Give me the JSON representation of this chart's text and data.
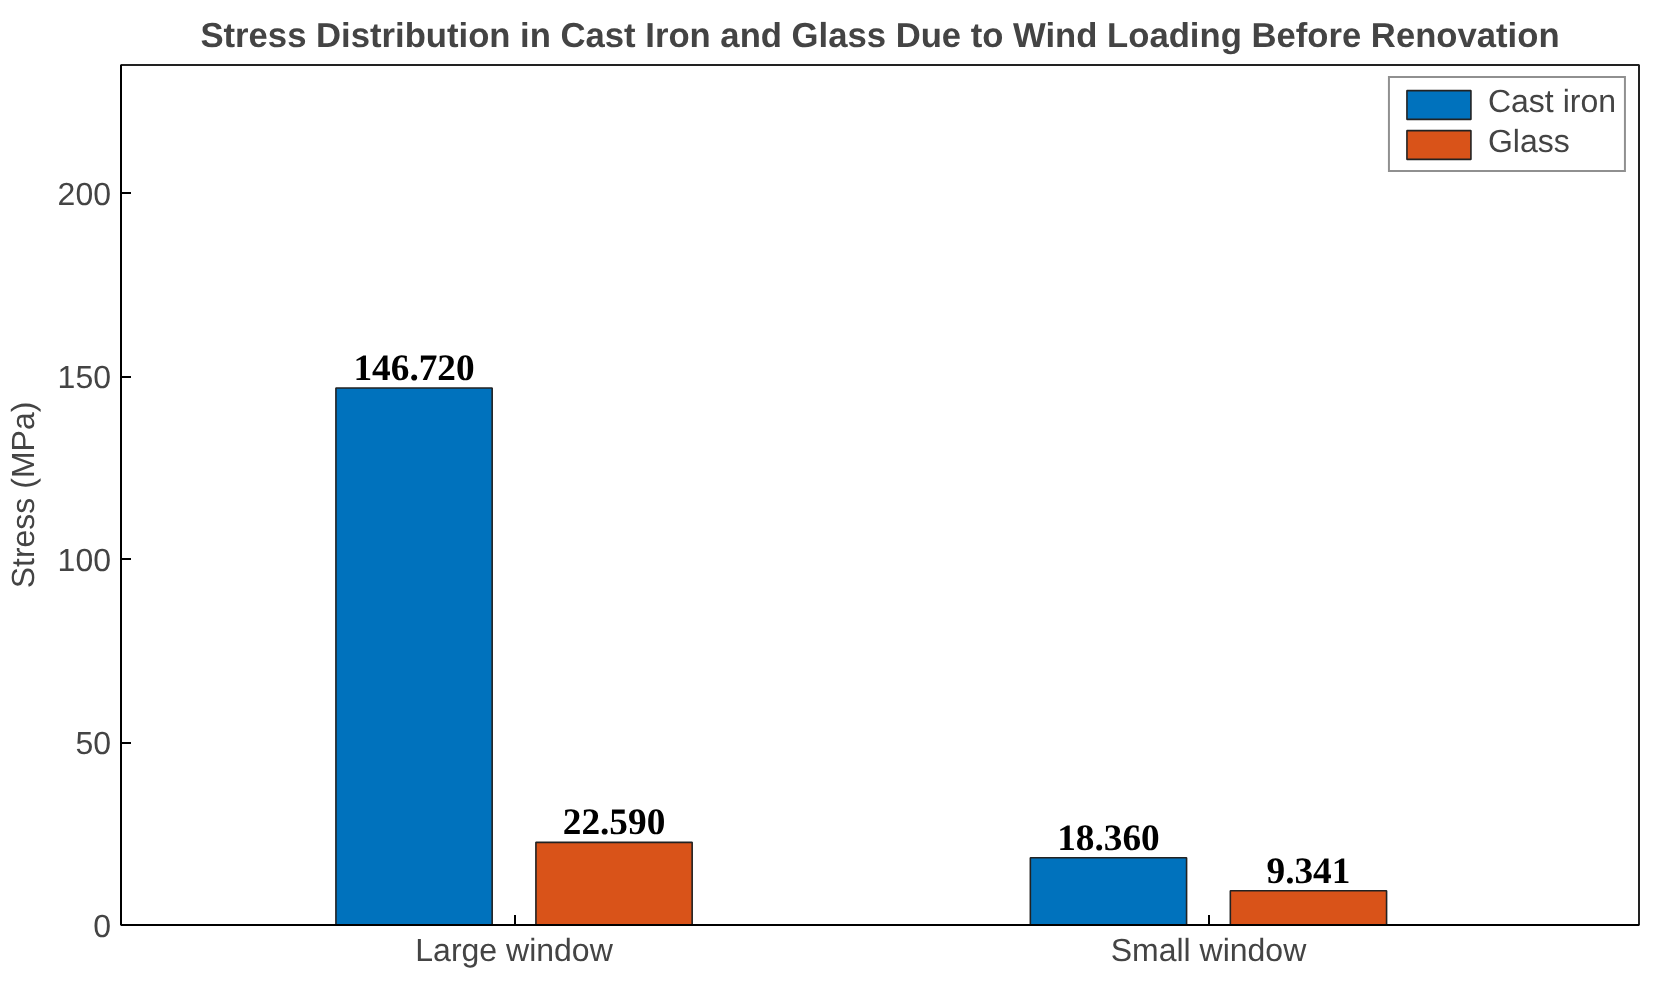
{
  "chart_data": {
    "type": "bar",
    "title": "Stress Distribution in Cast Iron and Glass Due to Wind Loading Before Renovation",
    "ylabel": "Stress (MPa)",
    "categories": [
      "Large window",
      "Small window"
    ],
    "series": [
      {
        "name": "Cast iron",
        "color": "#0072bd",
        "values": [
          146.72,
          18.36
        ]
      },
      {
        "name": "Glass",
        "color": "#d95319",
        "values": [
          22.59,
          9.341
        ]
      }
    ],
    "value_labels": [
      [
        "146.720",
        "18.360"
      ],
      [
        "22.590",
        "9.341"
      ]
    ],
    "ylim": [
      0,
      235
    ],
    "yticks": [
      0,
      50,
      100,
      150,
      200
    ],
    "grid": false,
    "legend": "top right"
  }
}
